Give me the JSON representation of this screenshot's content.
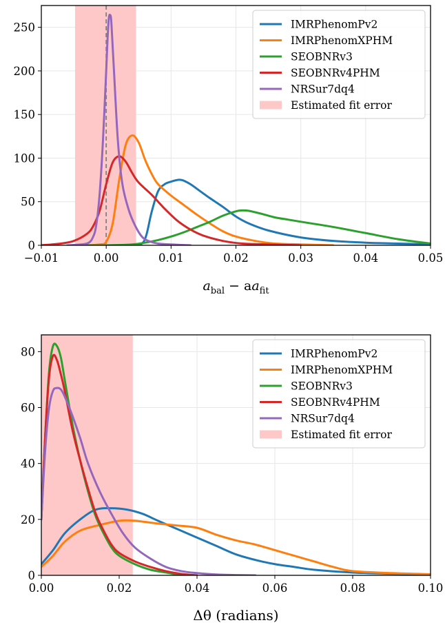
{
  "chart_data": [
    {
      "type": "line",
      "xlabel_main": "a",
      "xlabel_sub1": "bal",
      "xlabel_mid": " − a",
      "xlabel_sub2": "fit",
      "xlim": [
        -0.01,
        0.05
      ],
      "ylim": [
        0,
        275
      ],
      "xticks": [
        -0.01,
        0.0,
        0.01,
        0.02,
        0.03,
        0.04,
        0.05
      ],
      "xtick_labels": [
        "−0.01",
        "0.00",
        "0.01",
        "0.02",
        "0.03",
        "0.04",
        "0.05"
      ],
      "yticks": [
        0,
        50,
        100,
        150,
        200,
        250
      ],
      "ytick_labels": [
        "0",
        "50",
        "100",
        "150",
        "200",
        "250"
      ],
      "grid": true,
      "legend_position": "top-right",
      "error_band": {
        "label": "Estimated fit error",
        "x0": -0.0048,
        "x1": 0.0046,
        "color": "#ffc8c8"
      },
      "reference_line": {
        "x": 0.0,
        "style": "dashed",
        "color": "#808080"
      },
      "series": [
        {
          "name": "IMRPhenomPv2",
          "color": "#1f77b4",
          "x": [
            0.004,
            0.0055,
            0.0062,
            0.007,
            0.008,
            0.009,
            0.01,
            0.011,
            0.0115,
            0.012,
            0.013,
            0.0145,
            0.016,
            0.018,
            0.02,
            0.022,
            0.025,
            0.03,
            0.035,
            0.04,
            0.045,
            0.05
          ],
          "y": [
            0,
            2,
            12,
            38,
            62,
            70,
            73,
            75,
            75,
            74,
            70,
            62,
            54,
            44,
            33,
            25,
            17,
            9,
            5,
            3,
            2,
            1
          ]
        },
        {
          "name": "IMRPhenomXPHM",
          "color": "#ff7f0e",
          "x": [
            -0.003,
            -0.001,
            0.0,
            0.001,
            0.002,
            0.003,
            0.004,
            0.005,
            0.006,
            0.007,
            0.008,
            0.01,
            0.012,
            0.014,
            0.016,
            0.018,
            0.02,
            0.023,
            0.026,
            0.03,
            0.035
          ],
          "y": [
            0,
            1,
            4,
            25,
            75,
            115,
            126,
            118,
            98,
            82,
            70,
            57,
            46,
            35,
            25,
            16,
            10,
            5,
            2,
            1,
            0
          ]
        },
        {
          "name": "SEOBNRv3",
          "color": "#2ca02c",
          "x": [
            -0.004,
            0.0,
            0.004,
            0.006,
            0.008,
            0.01,
            0.012,
            0.014,
            0.016,
            0.018,
            0.02,
            0.021,
            0.022,
            0.024,
            0.026,
            0.028,
            0.03,
            0.035,
            0.04,
            0.045,
            0.05
          ],
          "y": [
            0,
            0,
            1,
            3,
            6,
            10,
            15,
            21,
            27,
            34,
            39,
            40,
            39.5,
            36,
            32,
            29.5,
            27,
            21,
            14,
            7,
            2
          ]
        },
        {
          "name": "SEOBNRv4PHM",
          "color": "#d62728",
          "x": [
            -0.01,
            -0.007,
            -0.005,
            -0.003,
            -0.002,
            -0.001,
            0.0,
            0.001,
            0.002,
            0.003,
            0.004,
            0.005,
            0.007,
            0.009,
            0.011,
            0.013,
            0.015,
            0.018,
            0.021,
            0.025,
            0.03
          ],
          "y": [
            0,
            2,
            5,
            13,
            22,
            40,
            70,
            95,
            102,
            96,
            83,
            72,
            58,
            42,
            28,
            18,
            11,
            5,
            2,
            1,
            0
          ]
        },
        {
          "name": "NRSur7dq4",
          "color": "#9467bd",
          "x": [
            -0.006,
            -0.003,
            -0.002,
            -0.0015,
            -0.001,
            -0.0005,
            0.0,
            0.0002,
            0.0004,
            0.0006,
            0.0008,
            0.0012,
            0.0018,
            0.0025,
            0.0035,
            0.0045,
            0.0055,
            0.0065,
            0.008,
            0.01,
            0.013
          ],
          "y": [
            0,
            2,
            10,
            25,
            60,
            120,
            200,
            235,
            260,
            264,
            255,
            200,
            120,
            70,
            40,
            22,
            10,
            5,
            2,
            1,
            0
          ]
        }
      ]
    },
    {
      "type": "line",
      "xlabel": "Δθ (radians)",
      "xlim": [
        0.0,
        0.1
      ],
      "ylim": [
        0,
        86
      ],
      "xticks": [
        0.0,
        0.02,
        0.04,
        0.06,
        0.08,
        0.1
      ],
      "xtick_labels": [
        "0.00",
        "0.02",
        "0.04",
        "0.06",
        "0.08",
        "0.10"
      ],
      "yticks": [
        0,
        20,
        40,
        60,
        80
      ],
      "ytick_labels": [
        "0",
        "20",
        "40",
        "60",
        "80"
      ],
      "grid": true,
      "legend_position": "top-right",
      "error_band": {
        "label": "Estimated fit error",
        "x0": 0.0,
        "x1": 0.0235,
        "color": "#ffc8c8"
      },
      "series": [
        {
          "name": "IMRPhenomPv2",
          "color": "#1f77b4",
          "x": [
            0.0,
            0.003,
            0.006,
            0.01,
            0.014,
            0.018,
            0.022,
            0.026,
            0.03,
            0.035,
            0.04,
            0.045,
            0.05,
            0.055,
            0.06,
            0.065,
            0.07,
            0.08,
            0.09,
            0.1
          ],
          "y": [
            4,
            9,
            15,
            20,
            23.5,
            24,
            23.5,
            22,
            19.5,
            16.5,
            13.5,
            10.5,
            7.5,
            5.5,
            4,
            3,
            2,
            1,
            0.6,
            0.3
          ]
        },
        {
          "name": "IMRPhenomXPHM",
          "color": "#ff7f0e",
          "x": [
            0.0,
            0.003,
            0.006,
            0.01,
            0.015,
            0.02,
            0.024,
            0.03,
            0.035,
            0.04,
            0.045,
            0.05,
            0.055,
            0.06,
            0.065,
            0.07,
            0.075,
            0.08,
            0.09,
            0.1
          ],
          "y": [
            3,
            7,
            12,
            16,
            18,
            19.5,
            19.5,
            18.5,
            17.8,
            17,
            14.5,
            12.5,
            11,
            9,
            7,
            5,
            3,
            1.5,
            0.8,
            0.4
          ]
        },
        {
          "name": "SEOBNRv3",
          "color": "#2ca02c",
          "x": [
            0.0,
            0.001,
            0.002,
            0.003,
            0.004,
            0.005,
            0.006,
            0.008,
            0.01,
            0.012,
            0.014,
            0.016,
            0.018,
            0.02,
            0.024,
            0.028,
            0.032,
            0.036
          ],
          "y": [
            20,
            50,
            73,
            82,
            82,
            78,
            70,
            54,
            41,
            30,
            21,
            15,
            10,
            7,
            4,
            2,
            1,
            0
          ]
        },
        {
          "name": "SEOBNRv4PHM",
          "color": "#d62728",
          "x": [
            0.0,
            0.001,
            0.002,
            0.003,
            0.004,
            0.005,
            0.006,
            0.008,
            0.01,
            0.012,
            0.014,
            0.016,
            0.018,
            0.02,
            0.024,
            0.028,
            0.032,
            0.036,
            0.04
          ],
          "y": [
            20,
            50,
            71,
            78.5,
            77,
            72,
            66,
            52,
            41,
            31,
            22,
            16,
            11,
            8,
            5,
            3,
            1.5,
            0.5,
            0
          ]
        },
        {
          "name": "NRSur7dq4",
          "color": "#9467bd",
          "x": [
            0.0,
            0.001,
            0.002,
            0.003,
            0.004,
            0.005,
            0.006,
            0.008,
            0.01,
            0.012,
            0.015,
            0.018,
            0.021,
            0.024,
            0.028,
            0.032,
            0.036,
            0.04,
            0.045,
            0.05,
            0.055
          ],
          "y": [
            20,
            45,
            60,
            66,
            67,
            66.5,
            64,
            57,
            49,
            40,
            30,
            22,
            15,
            10,
            6,
            3,
            1.5,
            0.8,
            0.3,
            0.1,
            0
          ]
        }
      ]
    }
  ]
}
